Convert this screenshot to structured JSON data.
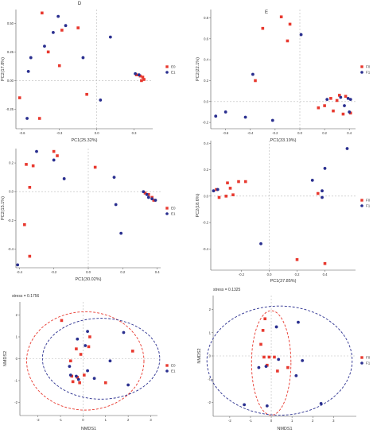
{
  "figure": {
    "panel_letters": [
      "D",
      "E"
    ]
  },
  "colors": {
    "red": "#e8392f",
    "blue": "#2a2f8f",
    "axis": "#555555",
    "dash": "#bbbbbb"
  },
  "chart_data": [
    {
      "id": "p1",
      "type": "scatter",
      "xlabel": "PC1(25.32%)",
      "ylabel": "PC2(17.8%)",
      "xlim": [
        -0.65,
        0.45
      ],
      "ylim": [
        -0.42,
        0.62
      ],
      "xticks": [
        -0.6,
        -0.3,
        0.0,
        0.3
      ],
      "xtick_labels": [
        "-0.6",
        "-0.3",
        "0.0",
        "0.3"
      ],
      "yticks": [
        0.5,
        0.25,
        0.0,
        -0.25
      ],
      "ytick_labels": [
        "0.50",
        "0.25",
        "0.00",
        "-0.25"
      ],
      "legend": [
        "E0",
        "E1"
      ],
      "legend_position": "right",
      "series": [
        {
          "name": "E0",
          "color": "red",
          "points": [
            [
              -0.44,
              0.59
            ],
            [
              -0.15,
              0.46
            ],
            [
              -0.28,
              0.44
            ],
            [
              -0.39,
              0.25
            ],
            [
              -0.3,
              0.13
            ],
            [
              -0.62,
              -0.15
            ],
            [
              -0.46,
              -0.33
            ],
            [
              0.32,
              0.05
            ],
            [
              0.35,
              0.04
            ],
            [
              0.37,
              0.03
            ],
            [
              0.38,
              0.01
            ],
            [
              0.36,
              0.0
            ],
            [
              -0.08,
              -0.12
            ]
          ]
        },
        {
          "name": "E1",
          "color": "blue",
          "points": [
            [
              -0.31,
              0.56
            ],
            [
              -0.25,
              0.48
            ],
            [
              0.11,
              0.38
            ],
            [
              -0.35,
              0.42
            ],
            [
              -0.42,
              0.3
            ],
            [
              -0.11,
              0.2
            ],
            [
              -0.53,
              0.2
            ],
            [
              -0.55,
              0.08
            ],
            [
              0.03,
              -0.17
            ],
            [
              0.31,
              0.06
            ],
            [
              0.34,
              0.05
            ],
            [
              -0.56,
              -0.33
            ]
          ]
        }
      ]
    },
    {
      "id": "p2",
      "type": "scatter",
      "xlabel": "PC1(33.19%)",
      "ylabel": "PC2(22.1%)",
      "xlim": [
        -0.72,
        0.45
      ],
      "ylim": [
        -0.26,
        0.88
      ],
      "xticks": [
        -0.6,
        -0.4,
        -0.2,
        0.0,
        0.2,
        0.4
      ],
      "xtick_labels": [
        "-0.6",
        "-0.4",
        "-0.2",
        "0.0",
        "0.2",
        "0.4"
      ],
      "yticks": [
        0.8,
        0.6,
        0.4,
        0.2,
        0.0,
        -0.2
      ],
      "ytick_labels": [
        "0.8",
        "0.6",
        "0.4",
        "0.2",
        "0.0",
        "-0.2"
      ],
      "legend": [
        "F0",
        "F1"
      ],
      "legend_position": "right",
      "series": [
        {
          "name": "F0",
          "color": "red",
          "points": [
            [
              -0.15,
              0.81
            ],
            [
              -0.08,
              0.74
            ],
            [
              -0.3,
              0.7
            ],
            [
              -0.1,
              0.58
            ],
            [
              -0.36,
              0.2
            ],
            [
              0.32,
              0.06
            ],
            [
              0.37,
              0.05
            ],
            [
              0.25,
              0.03
            ],
            [
              0.3,
              0.01
            ],
            [
              0.2,
              -0.04
            ],
            [
              0.15,
              -0.06
            ],
            [
              0.27,
              -0.09
            ],
            [
              0.35,
              -0.12
            ],
            [
              0.41,
              -0.11
            ]
          ]
        },
        {
          "name": "F1",
          "color": "blue",
          "points": [
            [
              0.01,
              0.64
            ],
            [
              -0.38,
              0.26
            ],
            [
              -0.6,
              -0.1
            ],
            [
              -0.68,
              -0.14
            ],
            [
              -0.44,
              -0.15
            ],
            [
              -0.22,
              -0.18
            ],
            [
              0.22,
              0.02
            ],
            [
              0.39,
              0.03
            ],
            [
              0.33,
              0.04
            ],
            [
              0.41,
              0.02
            ],
            [
              0.36,
              -0.04
            ],
            [
              0.4,
              -0.1
            ]
          ]
        }
      ]
    },
    {
      "id": "p3",
      "type": "scatter",
      "xlabel": "PC1(30.02%)",
      "ylabel": "PC2(15.1%)",
      "xlim": [
        -0.42,
        0.42
      ],
      "ylim": [
        -0.53,
        0.3
      ],
      "xticks": [
        -0.4,
        -0.2,
        0.0,
        0.2,
        0.4
      ],
      "xtick_labels": [
        "-0.4",
        "-0.2",
        "0.0",
        "0.2",
        "0.4"
      ],
      "yticks": [
        0.2,
        0.0,
        -0.2,
        -0.4
      ],
      "ytick_labels": [
        "0.2",
        "0.0",
        "-0.2",
        "-0.4"
      ],
      "legend": [
        "E0",
        "E1"
      ],
      "legend_position": "right",
      "series": [
        {
          "name": "E0",
          "color": "red",
          "points": [
            [
              -0.2,
              0.28
            ],
            [
              -0.18,
              0.25
            ],
            [
              -0.36,
              0.19
            ],
            [
              -0.32,
              0.18
            ],
            [
              0.04,
              0.17
            ],
            [
              -0.34,
              0.03
            ],
            [
              -0.37,
              -0.23
            ],
            [
              -0.34,
              -0.45
            ],
            [
              0.33,
              -0.01
            ],
            [
              0.35,
              -0.02
            ],
            [
              0.37,
              -0.04
            ],
            [
              0.38,
              -0.06
            ]
          ]
        },
        {
          "name": "E1",
          "color": "blue",
          "points": [
            [
              -0.3,
              0.28
            ],
            [
              -0.2,
              0.22
            ],
            [
              -0.14,
              0.09
            ],
            [
              0.15,
              0.1
            ],
            [
              0.32,
              0.0
            ],
            [
              0.34,
              -0.02
            ],
            [
              0.35,
              -0.04
            ],
            [
              0.37,
              -0.05
            ],
            [
              0.39,
              -0.06
            ],
            [
              0.16,
              -0.09
            ],
            [
              0.19,
              -0.29
            ],
            [
              -0.41,
              -0.51
            ]
          ]
        }
      ]
    },
    {
      "id": "p4",
      "type": "scatter",
      "xlabel": "PC1(37.85%)",
      "ylabel": "PC2(18.6%)",
      "xlim": [
        -0.42,
        0.62
      ],
      "ylim": [
        -0.56,
        0.42
      ],
      "xticks": [
        -0.2,
        0.0,
        0.2,
        0.4
      ],
      "xtick_labels": [
        "-0.2",
        "0.0",
        "0.2",
        "0.4"
      ],
      "yticks": [
        0.4,
        0.2,
        0.0,
        -0.2,
        -0.4
      ],
      "ytick_labels": [
        "0.4",
        "0.2",
        "0.0",
        "-0.2",
        "-0.4"
      ],
      "legend": [
        "F0",
        "F1"
      ],
      "legend_position": "right",
      "series": [
        {
          "name": "F0",
          "color": "red",
          "points": [
            [
              -0.3,
              0.1
            ],
            [
              -0.22,
              0.11
            ],
            [
              -0.17,
              0.11
            ],
            [
              -0.28,
              0.06
            ],
            [
              -0.38,
              0.05
            ],
            [
              -0.26,
              0.01
            ],
            [
              -0.31,
              0.0
            ],
            [
              -0.36,
              -0.01
            ],
            [
              0.2,
              -0.48
            ],
            [
              0.4,
              -0.51
            ],
            [
              0.35,
              0.02
            ]
          ]
        },
        {
          "name": "F1",
          "color": "blue",
          "points": [
            [
              -0.4,
              0.04
            ],
            [
              -0.37,
              0.05
            ],
            [
              0.31,
              0.12
            ],
            [
              0.4,
              0.21
            ],
            [
              0.56,
              0.36
            ],
            [
              0.38,
              0.04
            ],
            [
              0.38,
              -0.01
            ],
            [
              -0.06,
              -0.36
            ]
          ]
        }
      ]
    },
    {
      "id": "p5",
      "type": "scatter",
      "stress": "stress = 0.1756",
      "xlabel": "NMDS1",
      "ylabel": "NMDS2",
      "xlim": [
        -2.8,
        3.3
      ],
      "ylim": [
        -2.6,
        2.6
      ],
      "xticks": [
        -2,
        -1,
        0,
        1,
        2,
        3
      ],
      "xtick_labels": [
        "-2",
        "-1",
        "0",
        "1",
        "2",
        "3"
      ],
      "yticks": [
        2,
        1,
        0,
        -1,
        -2
      ],
      "ytick_labels": [
        "2",
        "1",
        "0",
        "-1",
        "-2"
      ],
      "legend": [
        "E0",
        "E1"
      ],
      "legend_position": "right",
      "ellipses": [
        {
          "group": "E0",
          "color": "red",
          "cx": 0.1,
          "cy": -0.1,
          "rx": 2.6,
          "ry": 2.25
        },
        {
          "group": "E1",
          "color": "blue",
          "cx": 0.8,
          "cy": 0.0,
          "rx": 2.6,
          "ry": 1.85
        }
      ],
      "series": [
        {
          "name": "E0",
          "color": "red",
          "points": [
            [
              -0.95,
              1.75
            ],
            [
              0.3,
              1.0
            ],
            [
              0.25,
              0.55
            ],
            [
              -0.3,
              0.45
            ],
            [
              -0.1,
              0.2
            ],
            [
              2.2,
              0.35
            ],
            [
              -0.55,
              -0.1
            ],
            [
              -0.5,
              -0.8
            ],
            [
              -0.25,
              -0.85
            ],
            [
              0.05,
              -0.75
            ],
            [
              -0.45,
              -1.05
            ],
            [
              -0.15,
              -1.1
            ],
            [
              1.0,
              -1.1
            ]
          ]
        },
        {
          "name": "E1",
          "color": "blue",
          "points": [
            [
              0.2,
              1.25
            ],
            [
              1.8,
              1.2
            ],
            [
              -0.25,
              0.9
            ],
            [
              0.1,
              0.6
            ],
            [
              1.2,
              -0.1
            ],
            [
              -0.6,
              -0.35
            ],
            [
              0.2,
              -0.55
            ],
            [
              -0.3,
              -0.8
            ],
            [
              0.5,
              -0.9
            ],
            [
              -0.55,
              -0.75
            ],
            [
              -0.2,
              -0.95
            ],
            [
              2.0,
              -1.2
            ]
          ]
        }
      ]
    },
    {
      "id": "p6",
      "type": "scatter",
      "stress": "stress = 0.1325",
      "xlabel": "NMDS1",
      "ylabel": "NMDS2",
      "xlim": [
        -2.8,
        4.1
      ],
      "ylim": [
        -2.6,
        2.6
      ],
      "xticks": [
        -2,
        -1,
        0,
        1,
        2,
        3
      ],
      "xtick_labels": [
        "-2",
        "-1",
        "0",
        "1",
        "2",
        "3"
      ],
      "yticks": [
        2,
        1,
        0,
        -1,
        -2
      ],
      "ytick_labels": [
        "2",
        "1",
        "0",
        "-1",
        "-2"
      ],
      "legend": [
        "F0",
        "F1"
      ],
      "legend_position": "right",
      "ellipses": [
        {
          "group": "F0",
          "color": "red",
          "cx": 0.0,
          "cy": -0.3,
          "rx": 0.95,
          "ry": 2.25
        },
        {
          "group": "F1",
          "color": "blue",
          "cx": 0.4,
          "cy": -0.2,
          "rx": 3.5,
          "ry": 2.35
        }
      ],
      "series": [
        {
          "name": "F0",
          "color": "red",
          "points": [
            [
              -0.3,
              1.6
            ],
            [
              -0.4,
              1.1
            ],
            [
              -0.5,
              0.5
            ],
            [
              -0.1,
              -0.05
            ],
            [
              0.15,
              -0.05
            ],
            [
              -0.2,
              -0.4
            ],
            [
              -0.35,
              -0.05
            ],
            [
              0.3,
              -0.65
            ],
            [
              0.8,
              -0.5
            ]
          ]
        },
        {
          "name": "F1",
          "color": "blue",
          "points": [
            [
              1.3,
              1.45
            ],
            [
              0.25,
              1.25
            ],
            [
              0.35,
              -0.15
            ],
            [
              -0.25,
              -0.45
            ],
            [
              -0.6,
              -0.5
            ],
            [
              1.2,
              -0.85
            ],
            [
              1.5,
              -0.2
            ],
            [
              -1.3,
              -2.1
            ],
            [
              -0.2,
              -2.15
            ],
            [
              2.4,
              -2.05
            ]
          ]
        }
      ]
    }
  ]
}
